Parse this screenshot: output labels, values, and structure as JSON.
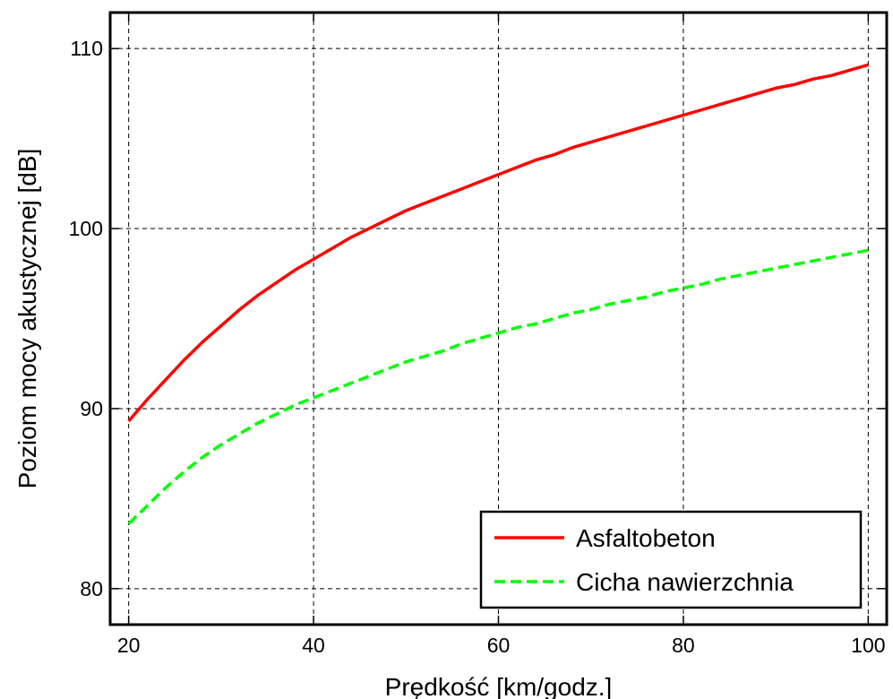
{
  "chart_data": {
    "type": "line",
    "title": "",
    "xlabel": "Prędkość [km/godz.]",
    "ylabel": "Poziom mocy akustycznej [dB]",
    "xlim": [
      18,
      102
    ],
    "ylim": [
      78,
      112
    ],
    "xticks": [
      20,
      40,
      60,
      80,
      100
    ],
    "yticks": [
      80,
      90,
      100,
      110
    ],
    "grid": true,
    "legend_position": "bottom-right",
    "series": [
      {
        "name": "Asfaltobeton",
        "color": "#ff0000",
        "style": "solid",
        "x": [
          20,
          22,
          24,
          26,
          28,
          30,
          32,
          34,
          36,
          38,
          40,
          42,
          44,
          46,
          48,
          50,
          52,
          54,
          56,
          58,
          60,
          62,
          64,
          66,
          68,
          70,
          72,
          74,
          76,
          78,
          80,
          82,
          84,
          86,
          88,
          90,
          92,
          94,
          96,
          98,
          100
        ],
        "y": [
          89.3,
          90.5,
          91.6,
          92.7,
          93.7,
          94.6,
          95.5,
          96.3,
          97.0,
          97.7,
          98.3,
          98.9,
          99.5,
          100.0,
          100.5,
          101.0,
          101.4,
          101.8,
          102.2,
          102.6,
          103.0,
          103.4,
          103.8,
          104.1,
          104.5,
          104.8,
          105.1,
          105.4,
          105.7,
          106.0,
          106.3,
          106.6,
          106.9,
          107.2,
          107.5,
          107.8,
          108.0,
          108.3,
          108.5,
          108.8,
          109.1
        ]
      },
      {
        "name": "Cicha nawierzchnia",
        "color": "#00ff00",
        "style": "dashed",
        "x": [
          20,
          22,
          24,
          26,
          28,
          30,
          32,
          34,
          36,
          38,
          40,
          42,
          44,
          46,
          48,
          50,
          52,
          54,
          56,
          58,
          60,
          62,
          64,
          66,
          68,
          70,
          72,
          74,
          76,
          78,
          80,
          82,
          84,
          86,
          88,
          90,
          92,
          94,
          96,
          98,
          100
        ],
        "y": [
          83.6,
          84.6,
          85.6,
          86.5,
          87.3,
          88.0,
          88.6,
          89.2,
          89.7,
          90.2,
          90.6,
          91.0,
          91.4,
          91.8,
          92.2,
          92.6,
          92.9,
          93.2,
          93.6,
          93.9,
          94.2,
          94.5,
          94.7,
          95.0,
          95.3,
          95.5,
          95.8,
          96.0,
          96.2,
          96.5,
          96.7,
          96.9,
          97.2,
          97.4,
          97.6,
          97.8,
          98.0,
          98.2,
          98.4,
          98.6,
          98.8
        ]
      }
    ]
  }
}
